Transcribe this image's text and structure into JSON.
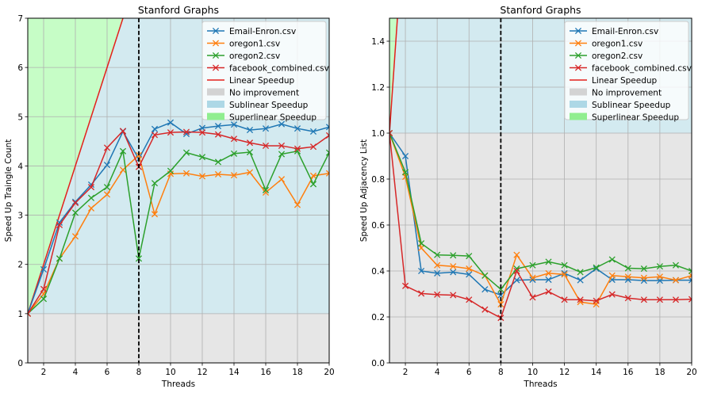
{
  "chart_data": [
    {
      "type": "line",
      "title": "Stanford Graphs",
      "xlabel": "Threads",
      "ylabel": "Speed Up Traingle Count",
      "xlim": [
        1,
        20
      ],
      "ylim": [
        0,
        7
      ],
      "xticks": [
        2,
        4,
        6,
        8,
        10,
        12,
        14,
        16,
        18,
        20
      ],
      "yticks": [
        0,
        1,
        2,
        3,
        4,
        5,
        6,
        7
      ],
      "grid": true,
      "legend_position": "top-right",
      "vline_x": 8,
      "regions": {
        "no_improvement": "No improvement",
        "sublinear": "Sublinear Speedup",
        "superlinear": "Superlinear Speedup",
        "linear": "Linear Speedup"
      },
      "x": [
        1,
        2,
        3,
        4,
        5,
        6,
        7,
        8,
        9,
        10,
        11,
        12,
        13,
        14,
        15,
        16,
        17,
        18,
        19,
        20
      ],
      "series": [
        {
          "name": "Email-Enron.csv",
          "color": "#1f77b4",
          "values": [
            1.0,
            1.9,
            2.85,
            3.27,
            3.62,
            4.02,
            4.7,
            4.14,
            4.75,
            4.88,
            4.65,
            4.77,
            4.81,
            4.84,
            4.73,
            4.76,
            4.85,
            4.76,
            4.7,
            4.79
          ]
        },
        {
          "name": "oregon1.csv",
          "color": "#ff7f0e",
          "values": [
            1.0,
            1.4,
            2.12,
            2.57,
            3.14,
            3.42,
            3.92,
            4.22,
            3.02,
            3.84,
            3.85,
            3.79,
            3.83,
            3.81,
            3.87,
            3.46,
            3.73,
            3.21,
            3.8,
            3.85
          ]
        },
        {
          "name": "oregon2.csv",
          "color": "#2ca02c",
          "values": [
            1.0,
            1.3,
            2.12,
            3.05,
            3.35,
            3.57,
            4.3,
            2.12,
            3.65,
            3.9,
            4.27,
            4.18,
            4.08,
            4.25,
            4.28,
            3.51,
            4.24,
            4.3,
            3.63,
            4.27
          ]
        },
        {
          "name": "facebook_combined.csv",
          "color": "#d62728",
          "values": [
            1.0,
            1.5,
            2.8,
            3.25,
            3.57,
            4.37,
            4.71,
            3.98,
            4.63,
            4.68,
            4.69,
            4.68,
            4.64,
            4.55,
            4.47,
            4.41,
            4.41,
            4.35,
            4.39,
            4.62
          ]
        }
      ]
    },
    {
      "type": "line",
      "title": "Stanford Graphs",
      "xlabel": "Threads",
      "ylabel": "Speed Up Adjacency List",
      "xlim": [
        1,
        20
      ],
      "ylim": [
        0.0,
        1.5
      ],
      "xticks": [
        2,
        4,
        6,
        8,
        10,
        12,
        14,
        16,
        18,
        20
      ],
      "yticks": [
        0.0,
        0.2,
        0.4,
        0.6,
        0.8,
        1.0,
        1.2,
        1.4
      ],
      "grid": true,
      "legend_position": "top-right",
      "vline_x": 8,
      "regions": {
        "no_improvement": "No improvement",
        "sublinear": "Sublinear Speedup",
        "superlinear": "Superlinear Speedup",
        "linear": "Linear Speedup"
      },
      "x": [
        1,
        2,
        3,
        4,
        5,
        6,
        7,
        8,
        9,
        10,
        11,
        12,
        13,
        14,
        15,
        16,
        17,
        18,
        19,
        20
      ],
      "series": [
        {
          "name": "Email-Enron.csv",
          "color": "#1f77b4",
          "values": [
            1.0,
            0.9,
            0.4,
            0.39,
            0.395,
            0.385,
            0.32,
            0.295,
            0.36,
            0.362,
            0.362,
            0.39,
            0.36,
            0.41,
            0.362,
            0.362,
            0.358,
            0.358,
            0.36,
            0.36
          ]
        },
        {
          "name": "oregon1.csv",
          "color": "#ff7f0e",
          "values": [
            1.0,
            0.81,
            0.5,
            0.425,
            0.42,
            0.41,
            0.38,
            0.255,
            0.47,
            0.37,
            0.39,
            0.385,
            0.265,
            0.255,
            0.38,
            0.375,
            0.37,
            0.375,
            0.36,
            0.38
          ]
        },
        {
          "name": "oregon2.csv",
          "color": "#2ca02c",
          "values": [
            1.0,
            0.83,
            0.52,
            0.47,
            0.468,
            0.465,
            0.38,
            0.32,
            0.41,
            0.425,
            0.44,
            0.425,
            0.395,
            0.415,
            0.45,
            0.412,
            0.41,
            0.42,
            0.425,
            0.4
          ]
        },
        {
          "name": "facebook_combined.csv",
          "color": "#d62728",
          "values": [
            1.0,
            0.335,
            0.302,
            0.297,
            0.295,
            0.275,
            0.232,
            0.196,
            0.4,
            0.285,
            0.31,
            0.275,
            0.275,
            0.27,
            0.298,
            0.282,
            0.275,
            0.275,
            0.275,
            0.277
          ]
        }
      ]
    }
  ]
}
